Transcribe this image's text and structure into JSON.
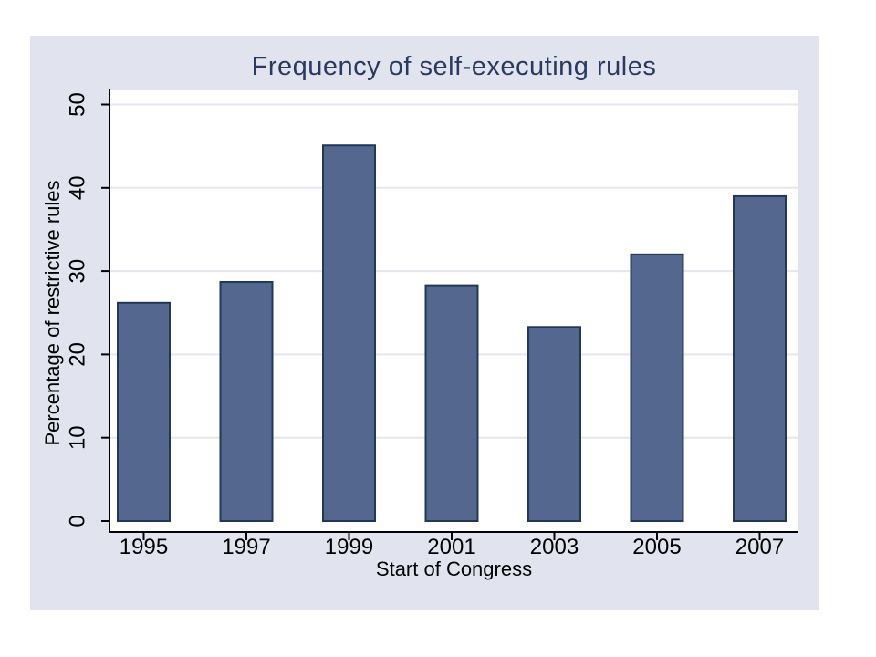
{
  "chart_data": {
    "type": "bar",
    "title": "Frequency of self-executing rules",
    "xlabel": "Start of Congress",
    "ylabel": "Percentage of restrictive rules",
    "categories": [
      "1995",
      "1997",
      "1999",
      "2001",
      "2003",
      "2005",
      "2007"
    ],
    "values": [
      26.2,
      28.7,
      45.1,
      28.3,
      23.3,
      32.0,
      39.0
    ],
    "yticks": [
      0,
      10,
      20,
      30,
      40,
      50
    ],
    "ylim": [
      0,
      51.7
    ],
    "grid": true,
    "legend_position": "none",
    "ytick_label_angle": "vertical",
    "colors": {
      "chart_background": "#e1e4ef",
      "plot_background": "#ffffff",
      "gridline": "#e5e6ef",
      "bar_fill": "#54678f",
      "bar_stroke": "#22375a",
      "axis": "#000000",
      "tick_label": "#000000",
      "title": "#293a5e"
    }
  }
}
